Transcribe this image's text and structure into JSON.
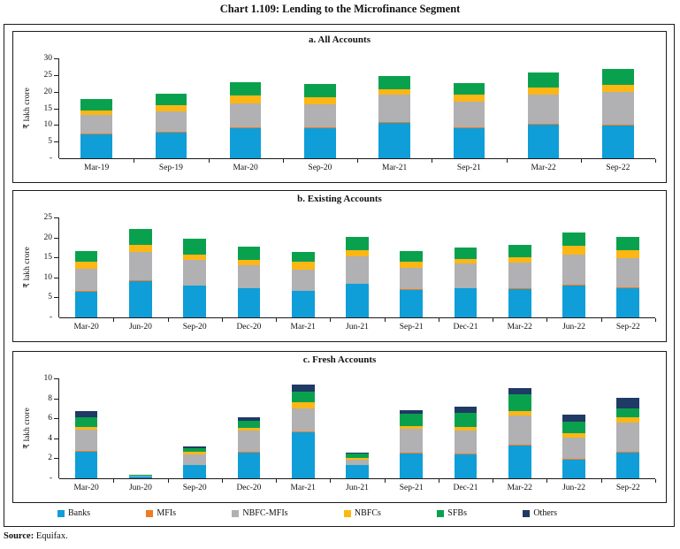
{
  "title": "Chart 1.109: Lending to the Microfinance Segment",
  "source": {
    "label": "Source:",
    "text": " Equifax."
  },
  "legend": [
    {
      "name": "Banks",
      "color": "#0F9ED8"
    },
    {
      "name": "MFIs",
      "color": "#EE7C22"
    },
    {
      "name": "NBFC-MFIs",
      "color": "#B1B0B2"
    },
    {
      "name": "NBFCs",
      "color": "#FDB714"
    },
    {
      "name": "SFBs",
      "color": "#0AA14E"
    },
    {
      "name": "Others",
      "color": "#1F3A64"
    }
  ],
  "chart_data": [
    {
      "type": "bar",
      "stacked": true,
      "title": "a. All Accounts",
      "ylabel": "₹ lakh crore",
      "ylim": [
        0,
        30
      ],
      "yticks": [
        0,
        5,
        10,
        15,
        20,
        25,
        30
      ],
      "ytick_labels": [
        "-",
        "5",
        "10",
        "15",
        "20",
        "25",
        "30"
      ],
      "grid": false,
      "categories": [
        "Mar-19",
        "Sep-19",
        "Mar-20",
        "Sep-20",
        "Mar-21",
        "Sep-21",
        "Mar-22",
        "Sep-22"
      ],
      "series": [
        {
          "name": "Banks",
          "values": [
            7.2,
            7.7,
            9.0,
            9.0,
            10.7,
            9.0,
            10.0,
            9.8
          ]
        },
        {
          "name": "MFIs",
          "values": [
            0.2,
            0.2,
            0.2,
            0.2,
            0.2,
            0.2,
            0.4,
            0.4
          ]
        },
        {
          "name": "NBFC-MFIs",
          "values": [
            5.6,
            6.2,
            7.3,
            7.0,
            8.1,
            7.8,
            8.6,
            9.6
          ]
        },
        {
          "name": "NBFCs",
          "values": [
            1.4,
            1.9,
            2.3,
            2.1,
            1.8,
            2.0,
            2.2,
            2.2
          ]
        },
        {
          "name": "SFBs",
          "values": [
            3.5,
            3.5,
            4.0,
            4.0,
            3.9,
            3.5,
            4.6,
            4.8
          ]
        },
        {
          "name": "Others",
          "values": [
            0,
            0,
            0,
            0,
            0,
            0,
            0,
            0
          ]
        }
      ]
    },
    {
      "type": "bar",
      "stacked": true,
      "title": "b. Existing Accounts",
      "ylabel": "₹ lakh crore",
      "ylim": [
        0,
        25
      ],
      "yticks": [
        0,
        5,
        10,
        15,
        20,
        25
      ],
      "ytick_labels": [
        "-",
        "5",
        "10",
        "15",
        "20",
        "25"
      ],
      "grid": false,
      "categories": [
        "Mar-20",
        "Jun-20",
        "Sep-20",
        "Dec-20",
        "Mar-21",
        "Jun-21",
        "Sep-21",
        "Dec-21",
        "Mar-22",
        "Jun-22",
        "Sep-22"
      ],
      "series": [
        {
          "name": "Banks",
          "values": [
            6.5,
            9.0,
            7.9,
            7.3,
            6.6,
            8.3,
            6.9,
            7.2,
            7.0,
            7.9,
            7.3
          ]
        },
        {
          "name": "MFIs",
          "values": [
            0.1,
            0.2,
            0.1,
            0.1,
            0.1,
            0.2,
            0.1,
            0.2,
            0.2,
            0.2,
            0.2
          ]
        },
        {
          "name": "NBFC-MFIs",
          "values": [
            5.6,
            7.1,
            6.3,
            5.7,
            5.3,
            6.7,
            5.5,
            6.1,
            6.5,
            7.6,
            7.4
          ]
        },
        {
          "name": "NBFCs",
          "values": [
            1.8,
            1.9,
            1.5,
            1.3,
            2.0,
            1.6,
            1.5,
            1.2,
            1.4,
            2.2,
            1.9
          ]
        },
        {
          "name": "SFBs",
          "values": [
            2.7,
            4.0,
            3.9,
            3.4,
            2.3,
            3.4,
            2.5,
            2.9,
            3.1,
            3.4,
            3.4
          ]
        },
        {
          "name": "Others",
          "values": [
            0,
            0,
            0,
            0,
            0,
            0,
            0,
            0,
            0,
            0,
            0
          ]
        }
      ]
    },
    {
      "type": "bar",
      "stacked": true,
      "title": "c. Fresh Accounts",
      "ylabel": "₹ lakh crore",
      "ylim": [
        0,
        10
      ],
      "yticks": [
        0,
        2,
        4,
        6,
        8,
        10
      ],
      "ytick_labels": [
        "-",
        "2",
        "4",
        "6",
        "8",
        "10"
      ],
      "grid": false,
      "categories": [
        "Mar-20",
        "Jun-20",
        "Sep-20",
        "Dec-20",
        "Mar-21",
        "Jun-21",
        "Sep-21",
        "Dec-21",
        "Mar-22",
        "Jun-22",
        "Sep-22"
      ],
      "series": [
        {
          "name": "Banks",
          "values": [
            2.7,
            0.2,
            1.3,
            2.6,
            4.6,
            1.3,
            2.5,
            2.4,
            3.3,
            1.9,
            2.6
          ]
        },
        {
          "name": "MFIs",
          "values": [
            0.05,
            0,
            0.05,
            0.05,
            0.1,
            0.05,
            0.05,
            0.05,
            0.1,
            0.05,
            0.1
          ]
        },
        {
          "name": "NBFC-MFIs",
          "values": [
            2.1,
            0.1,
            1.0,
            2.1,
            2.3,
            0.5,
            2.4,
            2.3,
            2.9,
            2.1,
            2.9
          ]
        },
        {
          "name": "NBFCs",
          "values": [
            0.3,
            0,
            0.3,
            0.3,
            0.6,
            0.2,
            0.3,
            0.4,
            0.4,
            0.5,
            0.5
          ]
        },
        {
          "name": "SFBs",
          "values": [
            1.0,
            0.1,
            0.35,
            0.7,
            1.1,
            0.4,
            1.2,
            1.4,
            1.7,
            1.1,
            0.9
          ]
        },
        {
          "name": "Others",
          "values": [
            0.6,
            0,
            0.15,
            0.4,
            0.7,
            0.15,
            0.4,
            0.6,
            0.6,
            0.7,
            1.1
          ]
        }
      ]
    }
  ]
}
